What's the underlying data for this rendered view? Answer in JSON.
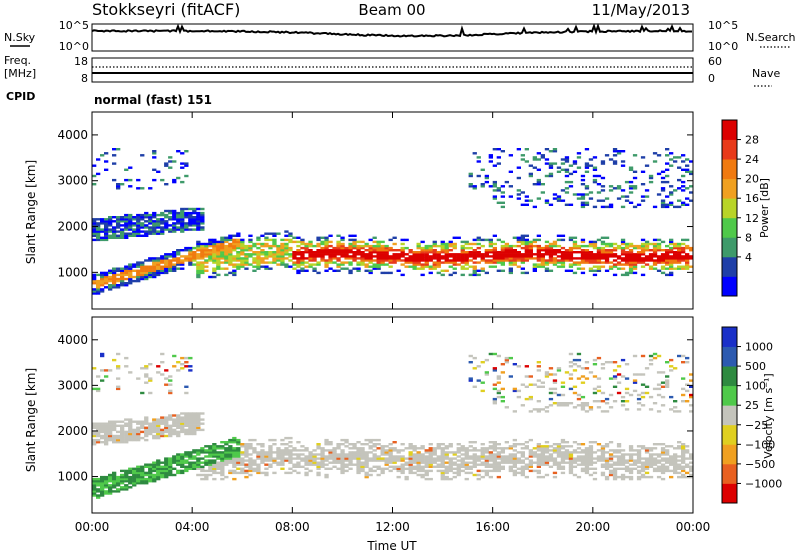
{
  "header": {
    "station": "Stokkseyri (fitACF)",
    "beam": "Beam 00",
    "date": "11/May/2013"
  },
  "side_labels": {
    "nsky": "N.Sky",
    "freq_line1": "Freq.",
    "freq_line2": "[MHz]",
    "cpid": "CPID",
    "nsearch": "N.Search",
    "nave": "Nave"
  },
  "cpid_value": "normal (fast) 151",
  "colors": {
    "power": [
      "#0000ff",
      "#1f3fa8",
      "#3e9a6a",
      "#4fc94a",
      "#b8d428",
      "#f0a020",
      "#f07a10",
      "#e83a1a",
      "#dc0000"
    ],
    "velocity": [
      "#1a30c8",
      "#2c5ab0",
      "#2e8a40",
      "#4fc94a",
      "#c4c4bc",
      "#e0cf20",
      "#f0a020",
      "#e86020",
      "#dc0000"
    ]
  },
  "chart_data": [
    {
      "type": "line",
      "panel": "noise",
      "left_ticks": [
        "10^5",
        "10^0"
      ],
      "right_ticks": [
        "10^5",
        "10^0"
      ]
    },
    {
      "type": "line",
      "panel": "frequency",
      "left_ticks": [
        "18",
        "8"
      ],
      "right_ticks": [
        "60",
        "0"
      ]
    },
    {
      "type": "heatmap",
      "panel": "power",
      "xlabel": "",
      "ylabel": "Slant Range [km]",
      "yticks": [
        "4000",
        "3000",
        "2000",
        "1000"
      ],
      "ylim": [
        200,
        4500
      ],
      "colorbar_label": "Power [dB]",
      "colorbar_ticks": [
        "28",
        "24",
        "20",
        "16",
        "12",
        "8",
        "4"
      ]
    },
    {
      "type": "heatmap",
      "panel": "velocity",
      "xlabel": "Time UT",
      "ylabel": "Slant Range [km]",
      "yticks": [
        "4000",
        "3000",
        "2000",
        "1000"
      ],
      "ylim": [
        200,
        4500
      ],
      "colorbar_label": "Velocity [m s⁻¹]",
      "colorbar_ticks": [
        "1000",
        "500",
        "100",
        "25",
        "−25",
        "−100",
        "−500",
        "−1000"
      ]
    }
  ],
  "time_axis": {
    "ticks": [
      "00:00",
      "04:00",
      "08:00",
      "12:00",
      "16:00",
      "20:00",
      "00:00"
    ]
  }
}
